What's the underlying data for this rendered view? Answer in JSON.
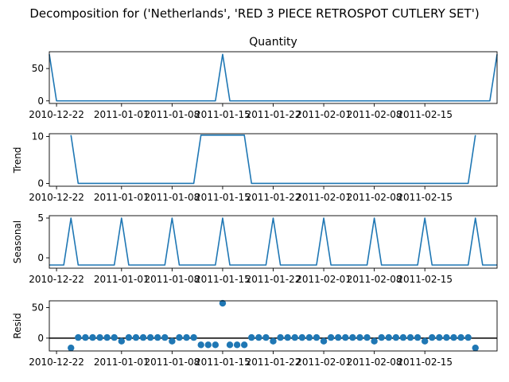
{
  "suptitle": "Decomposition for ('Netherlands', 'RED 3 PIECE RETROSPOT CUTLERY SET')",
  "chart_data": [
    {
      "type": "line",
      "title": "Quantity",
      "ylabel": "",
      "ylim": [
        -4,
        76
      ],
      "yticks": [
        0,
        50
      ],
      "series": [
        {
          "values": [
            72,
            0,
            0,
            0,
            0,
            0,
            0,
            0,
            0,
            0,
            0,
            0,
            0,
            0,
            0,
            0,
            0,
            0,
            0,
            0,
            0,
            0,
            0,
            0,
            72,
            0,
            0,
            0,
            0,
            0,
            0,
            0,
            0,
            0,
            0,
            0,
            0,
            0,
            0,
            0,
            0,
            0,
            0,
            0,
            0,
            0,
            0,
            0,
            0,
            0,
            0,
            0,
            0,
            0,
            0,
            0,
            0,
            0,
            0,
            0,
            0,
            0,
            72
          ]
        }
      ]
    },
    {
      "type": "line",
      "title": "",
      "ylabel": "Trend",
      "ylim": [
        -0.6,
        10.6
      ],
      "yticks": [
        0,
        10
      ],
      "series": [
        {
          "values": [
            null,
            null,
            null,
            10.3,
            0,
            0,
            0,
            0,
            0,
            0,
            0,
            0,
            0,
            0,
            0,
            0,
            0,
            0,
            0,
            0,
            0,
            10.3,
            10.3,
            10.3,
            10.3,
            10.3,
            10.3,
            10.3,
            0,
            0,
            0,
            0,
            0,
            0,
            0,
            0,
            0,
            0,
            0,
            0,
            0,
            0,
            0,
            0,
            0,
            0,
            0,
            0,
            0,
            0,
            0,
            0,
            0,
            0,
            0,
            0,
            0,
            0,
            0,
            10.3,
            null,
            null,
            null
          ]
        }
      ]
    },
    {
      "type": "line",
      "title": "",
      "ylabel": "Seasonal",
      "ylim": [
        -1.3,
        5.3
      ],
      "yticks": [
        0,
        5
      ],
      "series": [
        {
          "values": [
            -0.9,
            -0.9,
            -0.9,
            5,
            -0.9,
            -0.9,
            -0.9,
            -0.9,
            -0.9,
            -0.9,
            5,
            -0.9,
            -0.9,
            -0.9,
            -0.9,
            -0.9,
            -0.9,
            5,
            -0.9,
            -0.9,
            -0.9,
            -0.9,
            -0.9,
            -0.9,
            5,
            -0.9,
            -0.9,
            -0.9,
            -0.9,
            -0.9,
            -0.9,
            5,
            -0.9,
            -0.9,
            -0.9,
            -0.9,
            -0.9,
            -0.9,
            5,
            -0.9,
            -0.9,
            -0.9,
            -0.9,
            -0.9,
            -0.9,
            5,
            -0.9,
            -0.9,
            -0.9,
            -0.9,
            -0.9,
            -0.9,
            5,
            -0.9,
            -0.9,
            -0.9,
            -0.9,
            -0.9,
            -0.9,
            5,
            -0.9,
            -0.9,
            -0.9
          ]
        }
      ]
    },
    {
      "type": "scatter",
      "title": "",
      "ylabel": "Resid",
      "ylim": [
        -21,
        61
      ],
      "yticks": [
        0,
        50
      ],
      "hline": 0,
      "series": [
        {
          "values": [
            null,
            null,
            null,
            -16,
            1,
            1,
            1,
            1,
            1,
            1,
            -5,
            1,
            1,
            1,
            1,
            1,
            1,
            -5,
            1,
            1,
            1,
            -11,
            -11,
            -11,
            57,
            -11,
            -11,
            -11,
            1,
            1,
            1,
            -5,
            1,
            1,
            1,
            1,
            1,
            1,
            -5,
            1,
            1,
            1,
            1,
            1,
            1,
            -5,
            1,
            1,
            1,
            1,
            1,
            1,
            -5,
            1,
            1,
            1,
            1,
            1,
            1,
            -16,
            null,
            null,
            null
          ]
        }
      ]
    }
  ],
  "x_ticks": [
    {
      "index": 1,
      "label": "2010-12-22"
    },
    {
      "index": 10,
      "label": "2011-01-01"
    },
    {
      "index": 17,
      "label": "2011-01-08"
    },
    {
      "index": 24,
      "label": "2011-01-15"
    },
    {
      "index": 31,
      "label": "2011-01-22"
    },
    {
      "index": 38,
      "label": "2011-02-01"
    },
    {
      "index": 45,
      "label": "2011-02-08"
    },
    {
      "index": 52,
      "label": "2011-02-15"
    }
  ],
  "colors": {
    "line": "#1f77b4",
    "marker": "#1f77b4",
    "axis": "#000000"
  }
}
